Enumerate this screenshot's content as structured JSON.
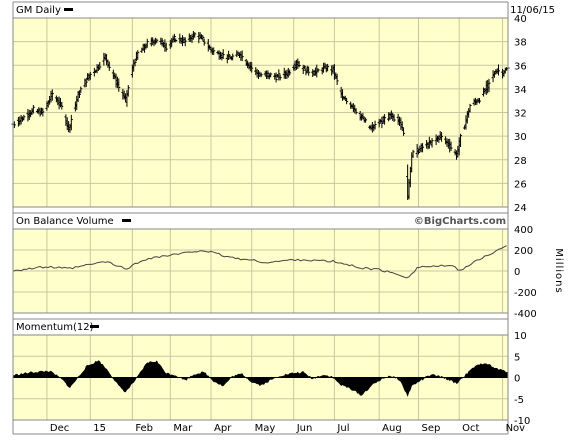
{
  "chart_data": [
    {
      "type": "ohlc",
      "panel": "price",
      "title": "GM Daily",
      "date_label": "11/06/15",
      "watermark": "©BigCharts.com",
      "ylim": [
        24,
        40
      ],
      "yticks": [
        24,
        26,
        28,
        30,
        32,
        34,
        36,
        38,
        40
      ],
      "grid": true,
      "x_tick_labels": [
        "Dec",
        "15",
        "Feb",
        "Mar",
        "Apr",
        "May",
        "Jun",
        "Jul",
        "Aug",
        "Sep",
        "Oct",
        "Nov"
      ],
      "x_tick_dates": [
        "2014-12-01",
        "2015-01-02",
        "2015-02-02",
        "2015-03-02",
        "2015-04-01",
        "2015-05-01",
        "2015-06-01",
        "2015-07-01",
        "2015-08-03",
        "2015-09-01",
        "2015-10-01",
        "2015-11-02"
      ],
      "x_range": [
        "2014-11-06",
        "2015-11-06"
      ],
      "close_anchors": [
        [
          "2014-11-06",
          31.0
        ],
        [
          "2014-11-14",
          31.6
        ],
        [
          "2014-11-21",
          32.2
        ],
        [
          "2014-11-28",
          32.0
        ],
        [
          "2014-12-05",
          33.6
        ],
        [
          "2014-12-12",
          32.4
        ],
        [
          "2014-12-17",
          30.6
        ],
        [
          "2014-12-24",
          33.5
        ],
        [
          "2014-12-31",
          35.0
        ],
        [
          "2015-01-07",
          35.8
        ],
        [
          "2015-01-13",
          36.7
        ],
        [
          "2015-01-21",
          34.6
        ],
        [
          "2015-01-28",
          33.0
        ],
        [
          "2015-02-03",
          36.2
        ],
        [
          "2015-02-06",
          37.0
        ],
        [
          "2015-02-13",
          37.8
        ],
        [
          "2015-02-20",
          38.2
        ],
        [
          "2015-02-27",
          37.6
        ],
        [
          "2015-03-06",
          38.3
        ],
        [
          "2015-03-13",
          38.0
        ],
        [
          "2015-03-20",
          38.6
        ],
        [
          "2015-03-25",
          38.3
        ],
        [
          "2015-04-01",
          37.3
        ],
        [
          "2015-04-08",
          36.9
        ],
        [
          "2015-04-15",
          36.6
        ],
        [
          "2015-04-22",
          37.0
        ],
        [
          "2015-04-29",
          36.0
        ],
        [
          "2015-05-06",
          35.2
        ],
        [
          "2015-05-13",
          35.2
        ],
        [
          "2015-05-20",
          35.0
        ],
        [
          "2015-05-27",
          35.3
        ],
        [
          "2015-06-03",
          36.2
        ],
        [
          "2015-06-10",
          35.6
        ],
        [
          "2015-06-17",
          35.4
        ],
        [
          "2015-06-24",
          35.8
        ],
        [
          "2015-06-30",
          35.6
        ],
        [
          "2015-07-07",
          33.2
        ],
        [
          "2015-07-14",
          32.6
        ],
        [
          "2015-07-21",
          31.6
        ],
        [
          "2015-07-28",
          30.6
        ],
        [
          "2015-08-04",
          31.2
        ],
        [
          "2015-08-11",
          31.7
        ],
        [
          "2015-08-18",
          31.4
        ],
        [
          "2015-08-21",
          30.1
        ],
        [
          "2015-08-24",
          25.0
        ],
        [
          "2015-08-27",
          28.4
        ],
        [
          "2015-09-03",
          29.0
        ],
        [
          "2015-09-10",
          29.4
        ],
        [
          "2015-09-17",
          30.0
        ],
        [
          "2015-09-24",
          29.2
        ],
        [
          "2015-09-29",
          28.4
        ],
        [
          "2015-10-02",
          29.8
        ],
        [
          "2015-10-09",
          32.6
        ],
        [
          "2015-10-16",
          33.2
        ],
        [
          "2015-10-23",
          34.4
        ],
        [
          "2015-10-28",
          35.6
        ],
        [
          "2015-11-02",
          35.4
        ],
        [
          "2015-11-06",
          35.7
        ]
      ]
    },
    {
      "type": "line",
      "panel": "obv",
      "title": "On Balance Volume",
      "unit_label": "Millions",
      "ylim": [
        -400,
        400
      ],
      "yticks": [
        -400,
        -200,
        0,
        200,
        400
      ],
      "grid": true,
      "x_range": [
        "2014-11-06",
        "2015-11-06"
      ],
      "points": [
        [
          "2014-11-06",
          5
        ],
        [
          "2014-12-01",
          40
        ],
        [
          "2014-12-17",
          20
        ],
        [
          "2015-01-13",
          90
        ],
        [
          "2015-01-28",
          20
        ],
        [
          "2015-02-13",
          120
        ],
        [
          "2015-03-13",
          170
        ],
        [
          "2015-03-25",
          200
        ],
        [
          "2015-04-15",
          130
        ],
        [
          "2015-05-13",
          80
        ],
        [
          "2015-06-03",
          110
        ],
        [
          "2015-06-30",
          90
        ],
        [
          "2015-07-21",
          30
        ],
        [
          "2015-08-04",
          10
        ],
        [
          "2015-08-24",
          -60
        ],
        [
          "2015-09-01",
          40
        ],
        [
          "2015-09-24",
          50
        ],
        [
          "2015-10-02",
          10
        ],
        [
          "2015-10-23",
          160
        ],
        [
          "2015-11-06",
          240
        ]
      ]
    },
    {
      "type": "area",
      "panel": "momentum",
      "title": "Momentum(12)",
      "ylim": [
        -10,
        10
      ],
      "yticks": [
        -10,
        -5,
        0,
        5,
        10
      ],
      "grid": true,
      "x_range": [
        "2014-11-06",
        "2015-11-06"
      ],
      "points": [
        [
          "2014-11-06",
          0.5
        ],
        [
          "2014-11-20",
          1.2
        ],
        [
          "2014-12-03",
          1.5
        ],
        [
          "2014-12-12",
          -0.4
        ],
        [
          "2014-12-18",
          -2.4
        ],
        [
          "2014-12-30",
          2.5
        ],
        [
          "2015-01-08",
          4.0
        ],
        [
          "2015-01-15",
          1.6
        ],
        [
          "2015-01-23",
          -2.0
        ],
        [
          "2015-01-28",
          -3.4
        ],
        [
          "2015-02-05",
          -0.3
        ],
        [
          "2015-02-13",
          3.5
        ],
        [
          "2015-02-20",
          3.8
        ],
        [
          "2015-02-27",
          1.0
        ],
        [
          "2015-03-06",
          0.5
        ],
        [
          "2015-03-13",
          -0.6
        ],
        [
          "2015-03-20",
          0.8
        ],
        [
          "2015-03-27",
          1.2
        ],
        [
          "2015-04-03",
          -0.8
        ],
        [
          "2015-04-10",
          -2.0
        ],
        [
          "2015-04-17",
          0.3
        ],
        [
          "2015-04-24",
          0.8
        ],
        [
          "2015-05-01",
          -1.0
        ],
        [
          "2015-05-08",
          -1.8
        ],
        [
          "2015-05-15",
          -0.6
        ],
        [
          "2015-05-22",
          0.4
        ],
        [
          "2015-06-01",
          1.0
        ],
        [
          "2015-06-08",
          1.2
        ],
        [
          "2015-06-15",
          -0.3
        ],
        [
          "2015-06-22",
          0.6
        ],
        [
          "2015-06-29",
          0.2
        ],
        [
          "2015-07-06",
          -1.8
        ],
        [
          "2015-07-13",
          -2.6
        ],
        [
          "2015-07-21",
          -4.2
        ],
        [
          "2015-07-28",
          -2.0
        ],
        [
          "2015-08-04",
          -0.5
        ],
        [
          "2015-08-11",
          0.4
        ],
        [
          "2015-08-18",
          -0.5
        ],
        [
          "2015-08-24",
          -4.3
        ],
        [
          "2015-08-27",
          -2.0
        ],
        [
          "2015-09-03",
          -0.6
        ],
        [
          "2015-09-10",
          0.6
        ],
        [
          "2015-09-17",
          0.2
        ],
        [
          "2015-09-24",
          -0.6
        ],
        [
          "2015-09-29",
          -1.4
        ],
        [
          "2015-10-05",
          0.4
        ],
        [
          "2015-10-12",
          2.4
        ],
        [
          "2015-10-20",
          3.5
        ],
        [
          "2015-10-27",
          2.2
        ],
        [
          "2015-11-02",
          1.6
        ],
        [
          "2015-11-06",
          1.3
        ]
      ]
    }
  ],
  "colors": {
    "plot_background": "#ffffcc",
    "grid": "#c8c8a0",
    "frame": "#888888",
    "ink": "#000000",
    "obv_line": "#444444"
  }
}
